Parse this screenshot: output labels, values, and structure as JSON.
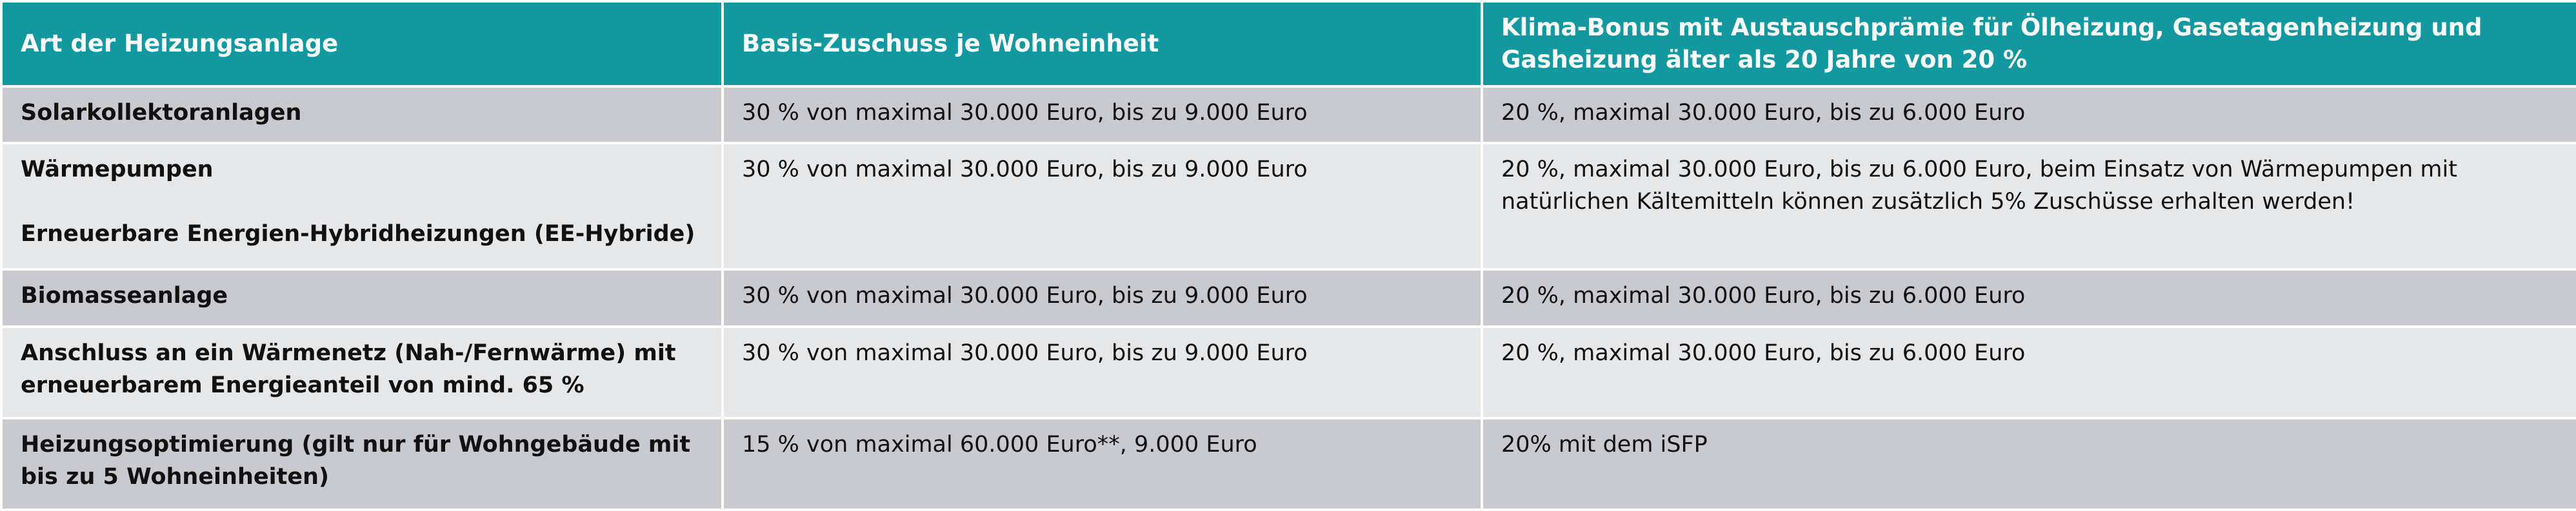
{
  "table": {
    "headers": [
      "Art der Heizungsanlage",
      "Basis-Zuschuss je Wohneinheit",
      "Klima-Bonus mit Austauschprämie für Ölheizung, Gasetagenheizung und Gasheizung älter als 20 Jahre von 20 %"
    ],
    "rows": [
      [
        "Solarkollektoranlagen",
        "30 % von maximal 30.000 Euro, bis zu 9.000 Euro",
        "20 %, maximal 30.000 Euro, bis zu 6.000 Euro"
      ],
      [
        [
          "Wärmepumpen",
          "Erneuerbare Energien-Hybridheizungen (EE-Hybride)"
        ],
        "30 % von maximal 30.000 Euro, bis zu 9.000 Euro",
        "20 %, maximal 30.000 Euro, bis zu 6.000 Euro, beim Einsatz von Wärmepumpen mit natürlichen Kältemitteln können zusätzlich 5% Zuschüsse erhalten werden!"
      ],
      [
        "Biomasseanlage",
        "30 % von maximal 30.000 Euro, bis zu 9.000 Euro",
        "20 %, maximal 30.000 Euro, bis zu 6.000 Euro"
      ],
      [
        "Anschluss an ein Wärmenetz (Nah-/Fernwärme) mit erneuerbarem Energieanteil von mind. 65 %",
        "30 % von maximal 30.000 Euro, bis zu 9.000 Euro",
        "20 %, maximal 30.000 Euro, bis zu 6.000 Euro"
      ],
      [
        "Heizungsoptimierung (gilt nur für Wohngebäude mit bis zu 5 Wohneinheiten)",
        "15 % von maximal 60.000 Euro**, 9.000 Euro",
        "20% mit dem iSFP"
      ]
    ]
  }
}
